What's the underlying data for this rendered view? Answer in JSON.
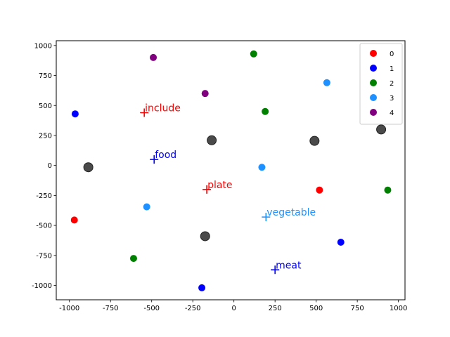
{
  "chart_data": {
    "type": "scatter",
    "xlim": [
      -1080,
      1040
    ],
    "ylim": [
      -1120,
      1040
    ],
    "x_ticks": [
      -1000,
      -750,
      -500,
      -250,
      0,
      250,
      500,
      750,
      1000
    ],
    "y_ticks": [
      -1000,
      -750,
      -500,
      -250,
      0,
      250,
      500,
      750,
      1000
    ],
    "grid": false,
    "legend_position": "top-right",
    "series": [
      {
        "name": "0",
        "color": "#ff0000",
        "points": [
          {
            "x": -970,
            "y": -455
          },
          {
            "x": 520,
            "y": -205
          }
        ]
      },
      {
        "name": "1",
        "color": "#0000ff",
        "points": [
          {
            "x": -965,
            "y": 430
          },
          {
            "x": 650,
            "y": -640
          },
          {
            "x": -195,
            "y": -1020
          }
        ]
      },
      {
        "name": "2",
        "color": "#008000",
        "points": [
          {
            "x": 120,
            "y": 930
          },
          {
            "x": 190,
            "y": 450
          },
          {
            "x": 935,
            "y": -205
          },
          {
            "x": -610,
            "y": -775
          }
        ]
      },
      {
        "name": "3",
        "color": "#1e90ff",
        "points": [
          {
            "x": 565,
            "y": 690
          },
          {
            "x": 170,
            "y": -15
          },
          {
            "x": -530,
            "y": -345
          }
        ]
      },
      {
        "name": "4",
        "color": "#800080",
        "points": [
          {
            "x": -490,
            "y": 900
          },
          {
            "x": -175,
            "y": 600
          }
        ]
      }
    ],
    "centroids": {
      "color": "#404040",
      "points": [
        {
          "x": -885,
          "y": -15
        },
        {
          "x": -135,
          "y": 210
        },
        {
          "x": 490,
          "y": 205
        },
        {
          "x": 895,
          "y": 300
        },
        {
          "x": -175,
          "y": -590
        }
      ]
    },
    "words": [
      {
        "text": "include",
        "x": -545,
        "y": 440,
        "color": "#ff0000"
      },
      {
        "text": "food",
        "x": -485,
        "y": 50,
        "color": "#0000ff"
      },
      {
        "text": "plate",
        "x": -165,
        "y": -200,
        "color": "#ff0000"
      },
      {
        "text": "vegetable",
        "x": 195,
        "y": -430,
        "color": "#1e90ff"
      },
      {
        "text": "meat",
        "x": 250,
        "y": -870,
        "color": "#0000ff"
      }
    ]
  }
}
